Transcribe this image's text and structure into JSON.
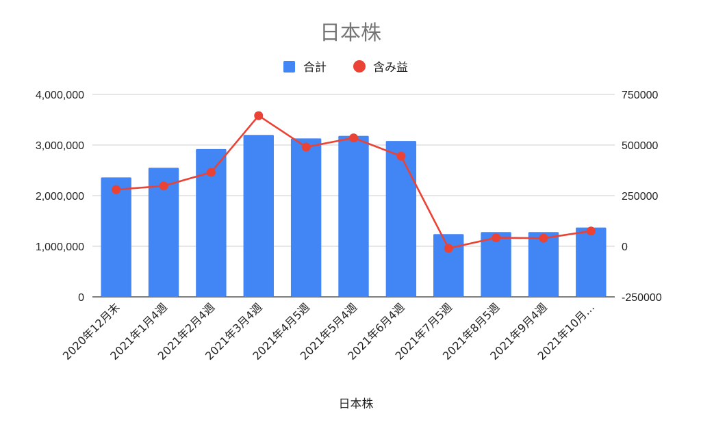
{
  "chart_data": {
    "type": "bar",
    "title": "日本株",
    "xlabel": "日本株",
    "categories": [
      "2020年12月末",
      "2021年1月4週",
      "2021年2月4週",
      "2021年3月4週",
      "2021年4月5週",
      "2021年5月4週",
      "2021年6月4週",
      "2021年7月5週",
      "2021年8月5週",
      "2021年9月4週",
      "2021年10月…"
    ],
    "series": [
      {
        "name": "合計",
        "type": "bar",
        "axis": "left",
        "color": "#4285F4",
        "values": [
          2360000,
          2550000,
          2920000,
          3200000,
          3130000,
          3180000,
          3080000,
          1240000,
          1280000,
          1280000,
          1370000
        ]
      },
      {
        "name": "含み益",
        "type": "line",
        "axis": "right",
        "color": "#EA4335",
        "values": [
          280000,
          298000,
          365000,
          645000,
          490000,
          535000,
          445000,
          -10000,
          42000,
          40000,
          75000
        ]
      }
    ],
    "y_left": {
      "min": 0,
      "max": 4000000,
      "ticks": [
        0,
        1000000,
        2000000,
        3000000,
        4000000
      ],
      "tick_labels": [
        "0",
        "1,000,000",
        "2,000,000",
        "3,000,000",
        "4,000,000"
      ]
    },
    "y_right": {
      "min": -250000,
      "max": 750000,
      "ticks": [
        -250000,
        0,
        250000,
        500000,
        750000
      ],
      "tick_labels": [
        "-250000",
        "0",
        "250000",
        "500000",
        "750000"
      ]
    },
    "grid": true,
    "legend_position": "top-center"
  }
}
